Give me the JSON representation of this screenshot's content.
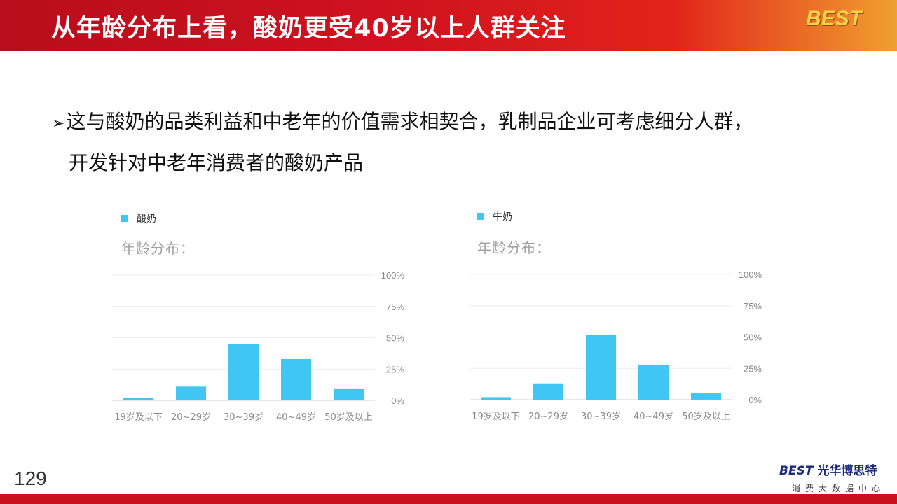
{
  "header": {
    "title": "从年龄分布上看，酸奶更受40岁以上人群关注",
    "logo": "BEST"
  },
  "bullet": {
    "glyph": "➢",
    "line1": "这与酸奶的品类利益和中老年的价值需求相契合，乳制品企业可考虑细分人群，",
    "line2": "开发针对中老年消费者的酸奶产品"
  },
  "colors": {
    "bar": "#3fc6f3",
    "header_red": "#d1121f"
  },
  "chart_data": [
    {
      "type": "bar",
      "legend": "酸奶",
      "title": "年龄分布：",
      "categories": [
        "19岁及以下",
        "20~29岁",
        "30~39岁",
        "40~49岁",
        "50岁及以上"
      ],
      "values": [
        2,
        11,
        45,
        33,
        9
      ],
      "yticks": [
        "0%",
        "25%",
        "50%",
        "75%",
        "100%"
      ],
      "ylim": [
        0,
        100
      ],
      "grid": true
    },
    {
      "type": "bar",
      "legend": "牛奶",
      "title": "年龄分布：",
      "categories": [
        "19岁及以下",
        "20~29岁",
        "30~39岁",
        "40~49岁",
        "50岁及以上"
      ],
      "values": [
        2,
        13,
        52,
        28,
        5
      ],
      "yticks": [
        "0%",
        "25%",
        "50%",
        "75%",
        "100%"
      ],
      "ylim": [
        0,
        100
      ],
      "grid": true
    }
  ],
  "footer": {
    "page_number": "129",
    "logo_best": "BEST",
    "logo_name": "光华博思特",
    "logo_sub": "消费大数据中心"
  }
}
